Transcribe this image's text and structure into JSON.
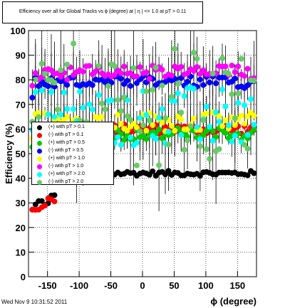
{
  "title": "Efficiency over all for Global Tracks vs ϕ (degree) at |  η | <= 1.0 at pT > 0.11",
  "timestamp": "Wed Nov  9 10:31:52 2011",
  "chart_data": {
    "type": "scatter",
    "xlabel": "ϕ (degree)",
    "ylabel": "Efficiency (%)",
    "xlim": [
      -180,
      180
    ],
    "ylim": [
      0,
      100
    ],
    "xticks": [
      -150,
      -100,
      -50,
      0,
      50,
      100,
      150
    ],
    "yticks": [
      0,
      10,
      20,
      30,
      40,
      50,
      60,
      70,
      80,
      90,
      100
    ],
    "grid": true,
    "legend_position": "left-middle",
    "series": [
      {
        "name": "(+) with pT > 0.1",
        "color": "#000000",
        "y_level": 42.0,
        "spread": 1.0,
        "low_start": true
      },
      {
        "name": "(-) with pT > 0.1",
        "color": "#ff0000",
        "y_level": 60.0,
        "spread": 2.0,
        "low_start": true
      },
      {
        "name": "(+) with pT > 0.5",
        "color": "#00cc00",
        "y_level": 58.0,
        "spread": 2.5,
        "low_start": false
      },
      {
        "name": "(-) with pT > 0.5",
        "color": "#0000ff",
        "y_level": 79.0,
        "spread": 2.5,
        "low_start": false
      },
      {
        "name": "(+) with pT > 1.0",
        "color": "#ffff00",
        "y_level": 63.0,
        "spread": 4.0,
        "low_start": false
      },
      {
        "name": "(-) with pT > 1.0",
        "color": "#ff00ff",
        "y_level": 83.0,
        "spread": 3.0,
        "low_start": false
      },
      {
        "name": "(+) with pT > 2.0",
        "color": "#00ffff",
        "y_level": 65.0,
        "spread": 12.0,
        "low_start": false
      },
      {
        "name": "(-) with pT > 2.0",
        "color": "#66cc66",
        "y_level": 70.0,
        "spread": 25.0,
        "low_start": false
      }
    ]
  }
}
